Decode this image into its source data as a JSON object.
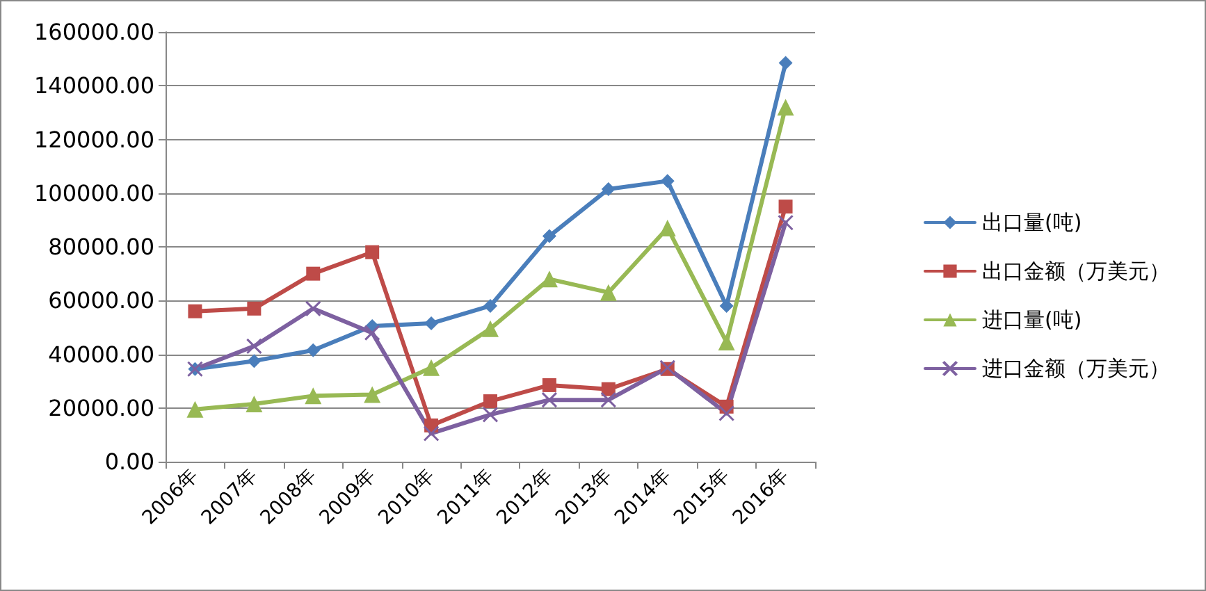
{
  "chart_data": {
    "type": "line",
    "categories": [
      "2006年",
      "2007年",
      "2008年",
      "2009年",
      "2010年",
      "2011年",
      "2012年",
      "2013年",
      "2014年",
      "2015年",
      "2016年"
    ],
    "series": [
      {
        "name": "出口量(吨)",
        "color": "#4a7ebb",
        "marker": "diamond",
        "values": [
          34500,
          37500,
          41500,
          50500,
          51500,
          58000,
          84000,
          101500,
          104500,
          58000,
          148500
        ]
      },
      {
        "name": "出口金额（万美元）",
        "color": "#be4b48",
        "marker": "square",
        "values": [
          56000,
          57000,
          70000,
          78000,
          13500,
          22500,
          28500,
          27000,
          34500,
          20500,
          95000
        ]
      },
      {
        "name": "进口量(吨)",
        "color": "#98b954",
        "marker": "triangle",
        "values": [
          19500,
          21500,
          24500,
          25000,
          35000,
          49500,
          68000,
          63000,
          87000,
          44500,
          132000
        ]
      },
      {
        "name": "进口金额（万美元）",
        "color": "#7d60a0",
        "marker": "cross",
        "values": [
          34500,
          43000,
          57000,
          48000,
          10500,
          17500,
          23000,
          23000,
          35000,
          18000,
          89000
        ]
      }
    ],
    "ylim": [
      0,
      160000
    ],
    "yticks": [
      {
        "value": 0,
        "label": "0.00"
      },
      {
        "value": 20000,
        "label": "20000.00"
      },
      {
        "value": 40000,
        "label": "40000.00"
      },
      {
        "value": 60000,
        "label": "60000.00"
      },
      {
        "value": 80000,
        "label": "80000.00"
      },
      {
        "value": 100000,
        "label": "100000.00"
      },
      {
        "value": 120000,
        "label": "120000.00"
      },
      {
        "value": 140000,
        "label": "140000.00"
      },
      {
        "value": 160000,
        "label": "160000.00"
      }
    ],
    "grid": "y",
    "legend": "right"
  }
}
